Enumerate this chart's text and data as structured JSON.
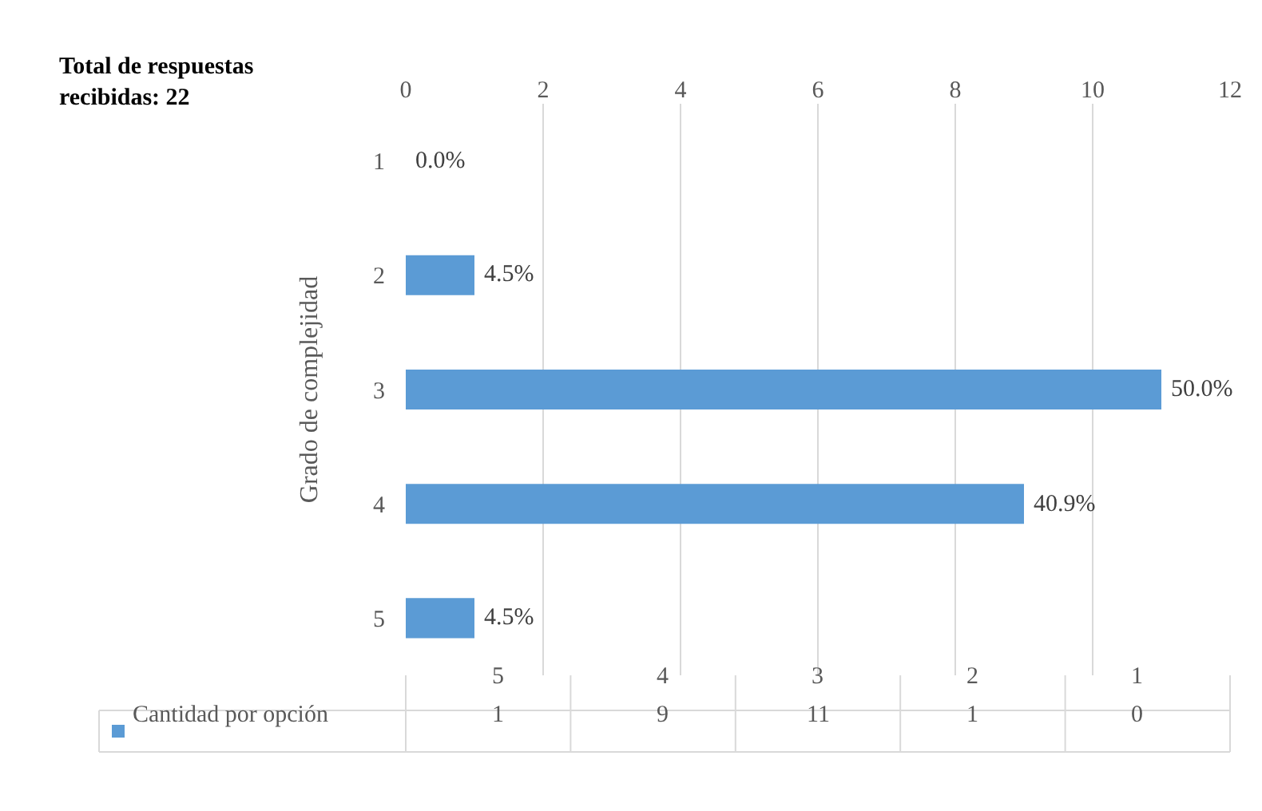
{
  "chart_data": {
    "type": "bar",
    "orientation": "horizontal",
    "ylabel": "Grado de complejidad",
    "annotations": [
      "Total de respuestas recibidas: 22",
      "1",
      "9",
      "11",
      "1",
      "0",
      {
        "text": "0.0%",
        "x": 0,
        "y": "1"
      },
      {
        "text": "4.5%",
        "x": 1,
        "y": "2"
      },
      {
        "text": "50.0%",
        "x": 11,
        "y": "3"
      },
      {
        "text": "40.9%",
        "x": 9,
        "y": "4"
      },
      {
        "text": "4.5%",
        "x": 1,
        "y": "5"
      }
    ],
    "categories": [
      "1",
      "2",
      "3",
      "4",
      "5"
    ],
    "series": [
      {
        "name": "Cantidad por opción",
        "color": "#5b9bd5",
        "values": [
          0,
          1,
          11,
          9,
          1
        ]
      }
    ],
    "xlim": [
      0,
      12
    ],
    "xticks": [
      0,
      2,
      4,
      6,
      8,
      10,
      12
    ],
    "grid": "x"
  }
}
